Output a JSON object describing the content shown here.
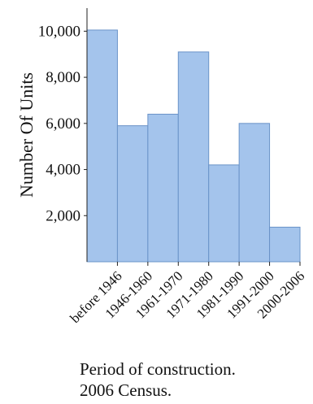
{
  "chart_data": {
    "type": "bar",
    "categories": [
      "before 1946",
      "1946-1960",
      "1961-1970",
      "1971-1980",
      "1981-1990",
      "1991-2000",
      "2000-2006"
    ],
    "values": [
      10050,
      5900,
      6400,
      9100,
      4200,
      6000,
      1500
    ],
    "ylabel": "Number Of Units",
    "xlabel": "",
    "yticks": [
      2000,
      4000,
      6000,
      8000,
      10000
    ],
    "ytick_labels": [
      "2,000",
      "4,000",
      "6,000",
      "8,000",
      "10,000"
    ],
    "ylim": [
      0,
      11000
    ],
    "grid": false,
    "bar_color": "#a4c4ec",
    "bar_edge_color": "#6a93c8"
  },
  "caption": {
    "line1": "Period of construction.",
    "line2": "2006 Census."
  }
}
